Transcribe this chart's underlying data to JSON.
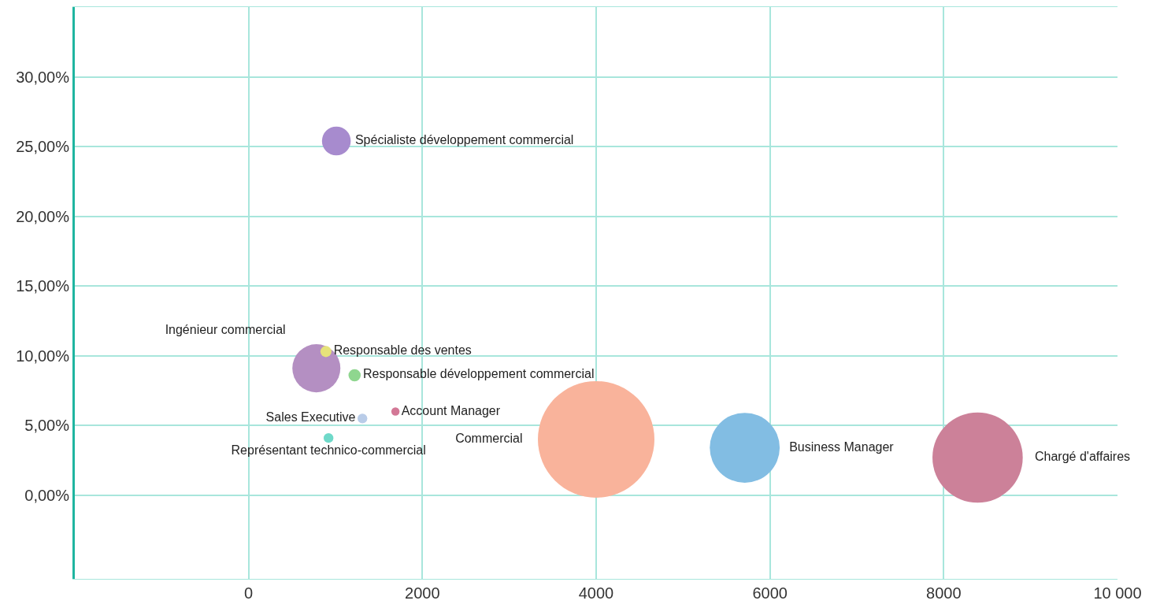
{
  "chart_data": {
    "type": "bubble",
    "series": [
      {
        "name": "Spécialiste développement commercial",
        "color": "#a78bce",
        "x": [
          1010
        ],
        "values": [
          25.4
        ],
        "sizes": [
          0.061
        ]
      },
      {
        "name": "Ingénieur commercial",
        "color": "#b48fc2",
        "x": [
          780
        ],
        "values": [
          9.1
        ],
        "sizes": [
          0.17
        ]
      },
      {
        "name": "Responsable des ventes",
        "color": "#e6e27a",
        "x": [
          890
        ],
        "values": [
          10.3
        ],
        "sizes": [
          0.009
        ]
      },
      {
        "name": "Responsable développement commercial",
        "color": "#8fd68f",
        "x": [
          1220
        ],
        "values": [
          8.6
        ],
        "sizes": [
          0.011
        ]
      },
      {
        "name": "Sales Executive",
        "color": "#b9cce8",
        "x": [
          1310
        ],
        "values": [
          5.5
        ],
        "sizes": [
          0.007
        ]
      },
      {
        "name": "Account Manager",
        "color": "#d37896",
        "x": [
          1690
        ],
        "values": [
          6.0
        ],
        "sizes": [
          0.005
        ]
      },
      {
        "name": "Représentant technico-commercial",
        "color": "#6fd9c9",
        "x": [
          920
        ],
        "values": [
          4.1
        ],
        "sizes": [
          0.007
        ]
      },
      {
        "name": "Commercial",
        "color": "#f9b39b",
        "x": [
          4000
        ],
        "values": [
          4.0
        ],
        "sizes": [
          1
        ]
      },
      {
        "name": "Business Manager",
        "color": "#82bde3",
        "x": [
          5710
        ],
        "values": [
          3.4
        ],
        "sizes": [
          0.36
        ]
      },
      {
        "name": "Chargé d'affaires",
        "color": "#cc8199",
        "x": [
          8390
        ],
        "values": [
          2.7
        ],
        "sizes": [
          0.6
        ]
      }
    ],
    "xlim": [
      -2000,
      10000
    ],
    "xticks": [
      0,
      2000,
      4000,
      6000,
      8000,
      {
        "value": 10000,
        "label": "10 000"
      }
    ],
    "ylim": [
      -6,
      35
    ],
    "yticks": [
      {
        "value": 0,
        "label": "0,00%"
      },
      {
        "value": 5,
        "label": "5,00%"
      },
      {
        "value": 10,
        "label": "10,00%"
      },
      {
        "value": 15,
        "label": "15,00%"
      },
      {
        "value": 20,
        "label": "20,00%"
      },
      {
        "value": 25,
        "label": "25,00%"
      },
      {
        "value": 30,
        "label": "30,00%"
      }
    ],
    "grid": true,
    "legend": false
  }
}
